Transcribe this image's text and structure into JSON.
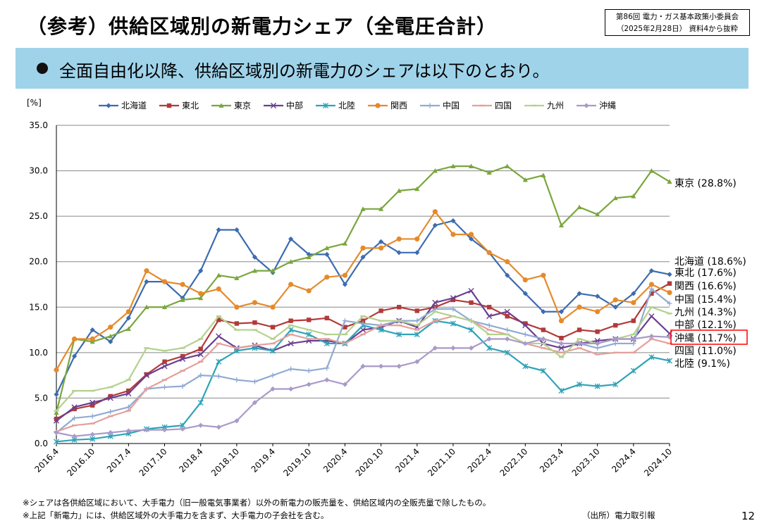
{
  "title": "（参考）供給区域別の新電力シェア（全電圧合計）",
  "source_box": {
    "line1": "第86回 電力・ガス基本政策小委員会",
    "line2": "（2025年2月28日） 資料4から抜粋"
  },
  "banner": "全面自由化以降、供給区域別の新電力のシェアは以下のとおり。",
  "footnotes": [
    "※シェアは各供給区域において、大手電力（旧一般電気事業者）以外の新電力の販売量を、供給区域内の全販売量で除したもの。",
    "※上記「新電力」には、供給区域外の大手電力を含まず、大手電力の子会社を含む。"
  ],
  "source_note": "（出所）電力取引報",
  "page_number": "12",
  "highlight_color": "#ff0000",
  "chart_data": {
    "type": "line",
    "ylabel": "[%]",
    "ylim": [
      0,
      35
    ],
    "yticks": [
      "0.0",
      "5.0",
      "10.0",
      "15.0",
      "20.0",
      "25.0",
      "30.0",
      "35.0"
    ],
    "x": [
      "2016.4",
      "2016.7",
      "2016.10",
      "2017.1",
      "2017.4",
      "2017.7",
      "2017.10",
      "2018.1",
      "2018.4",
      "2018.7",
      "2018.10",
      "2019.1",
      "2019.4",
      "2019.7",
      "2019.10",
      "2020.1",
      "2020.4",
      "2020.7",
      "2020.10",
      "2021.1",
      "2021.4",
      "2021.7",
      "2021.10",
      "2022.1",
      "2022.4",
      "2022.7",
      "2022.10",
      "2023.1",
      "2023.4",
      "2023.7",
      "2023.10",
      "2024.1",
      "2024.4",
      "2024.7",
      "2024.10"
    ],
    "xticks": [
      "2016.4",
      "2016.10",
      "2017.4",
      "2017.10",
      "2018.4",
      "2018.10",
      "2019.4",
      "2019.10",
      "2020.4",
      "2020.10",
      "2021.4",
      "2021.10",
      "2022.4",
      "2022.10",
      "2023.4",
      "2023.10",
      "2024.4",
      "2024.10"
    ],
    "grid": "horizontal",
    "legend_position": "top",
    "series": [
      {
        "name": "北海道",
        "color": "#3c6cb0",
        "marker": "diamond",
        "end_label": "北海道 (18.6%)",
        "values": [
          5.4,
          9.6,
          12.5,
          11.2,
          13.8,
          17.8,
          17.8,
          16.0,
          19.0,
          23.5,
          23.5,
          20.5,
          18.8,
          22.5,
          20.8,
          20.8,
          17.5,
          20.5,
          22.2,
          21.0,
          21.0,
          24.0,
          24.5,
          22.5,
          21.0,
          18.5,
          16.5,
          14.5,
          14.5,
          16.5,
          16.2,
          15.0,
          16.5,
          19.0,
          18.6
        ]
      },
      {
        "name": "東北",
        "color": "#b23a3a",
        "marker": "square",
        "end_label": "東北 (17.6%)",
        "values": [
          2.7,
          3.8,
          4.2,
          5.2,
          5.8,
          7.6,
          9.0,
          9.6,
          10.4,
          13.6,
          13.2,
          13.3,
          12.8,
          13.5,
          13.6,
          13.8,
          12.8,
          13.5,
          14.6,
          15.0,
          14.6,
          15.0,
          15.8,
          15.5,
          15.0,
          14.0,
          13.2,
          12.5,
          11.6,
          12.5,
          12.3,
          13.0,
          13.5,
          16.5,
          17.6
        ]
      },
      {
        "name": "東京",
        "color": "#7aa63c",
        "marker": "triangle",
        "end_label": "東京 (28.8%)",
        "values": [
          3.4,
          11.5,
          11.2,
          11.8,
          12.6,
          15.0,
          15.0,
          15.8,
          16.0,
          18.5,
          18.2,
          19.0,
          19.0,
          20.0,
          20.5,
          21.5,
          22.0,
          25.8,
          25.8,
          27.8,
          28.0,
          30.0,
          30.5,
          30.5,
          29.8,
          30.5,
          29.0,
          29.5,
          24.0,
          26.0,
          25.2,
          27.0,
          27.2,
          30.0,
          28.8
        ]
      },
      {
        "name": "中部",
        "color": "#6a3e90",
        "marker": "x",
        "end_label": "中部 (12.1%)",
        "values": [
          2.5,
          4.0,
          4.5,
          5.0,
          5.5,
          7.5,
          8.5,
          9.3,
          9.8,
          11.8,
          10.5,
          10.8,
          10.2,
          11.0,
          11.3,
          11.3,
          11.0,
          12.5,
          12.8,
          13.5,
          12.8,
          15.5,
          16.0,
          16.8,
          14.0,
          14.5,
          13.0,
          11.0,
          10.5,
          11.0,
          11.3,
          11.5,
          11.5,
          14.0,
          12.1
        ]
      },
      {
        "name": "北陸",
        "color": "#2fa3b8",
        "marker": "asterisk",
        "end_label": "北陸 (9.1%)",
        "values": [
          0.2,
          0.4,
          0.5,
          0.8,
          1.1,
          1.6,
          1.8,
          2.0,
          4.5,
          9.0,
          10.2,
          10.5,
          10.2,
          12.5,
          12.0,
          11.0,
          11.0,
          13.0,
          12.5,
          12.0,
          12.0,
          13.5,
          13.2,
          12.5,
          10.5,
          10.0,
          8.5,
          8.0,
          5.8,
          6.5,
          6.3,
          6.5,
          8.0,
          9.5,
          9.1
        ]
      },
      {
        "name": "関西",
        "color": "#e58a2b",
        "marker": "circle",
        "end_label": "関西 (16.6%)",
        "values": [
          8.1,
          11.5,
          11.5,
          12.8,
          14.5,
          19.0,
          17.8,
          17.5,
          16.5,
          17.0,
          15.0,
          15.5,
          15.0,
          17.5,
          16.8,
          18.3,
          18.5,
          21.5,
          21.5,
          22.5,
          22.5,
          25.5,
          23.0,
          23.0,
          21.0,
          20.0,
          18.0,
          18.5,
          13.5,
          15.0,
          14.5,
          15.8,
          15.5,
          17.5,
          16.6
        ]
      },
      {
        "name": "中国",
        "color": "#8fabd3",
        "marker": "plus",
        "end_label": "中国 (15.4%)",
        "values": [
          1.2,
          2.8,
          3.0,
          3.5,
          4.0,
          6.0,
          6.2,
          6.3,
          7.5,
          7.4,
          7.0,
          6.8,
          7.5,
          8.2,
          8.0,
          8.3,
          13.5,
          13.2,
          13.0,
          13.5,
          13.5,
          14.8,
          14.8,
          13.5,
          13.0,
          12.5,
          12.0,
          11.5,
          11.0,
          11.0,
          10.5,
          11.0,
          11.0,
          17.0,
          15.4
        ]
      },
      {
        "name": "四国",
        "color": "#e3a09b",
        "marker": "dash",
        "end_label": "四国 (11.0%)",
        "values": [
          1.3,
          2.0,
          2.2,
          3.0,
          3.6,
          6.0,
          7.0,
          8.0,
          9.0,
          11.0,
          10.5,
          10.8,
          11.0,
          12.0,
          11.5,
          11.5,
          11.0,
          12.0,
          13.0,
          13.0,
          12.5,
          13.5,
          14.0,
          13.5,
          12.5,
          12.0,
          11.0,
          10.5,
          10.0,
          10.5,
          9.8,
          10.0,
          10.0,
          11.5,
          11.0
        ]
      },
      {
        "name": "九州",
        "color": "#b5d18e",
        "marker": "dash",
        "end_label": "九州 (14.3%)",
        "values": [
          3.6,
          5.8,
          5.8,
          6.2,
          7.0,
          10.5,
          10.2,
          10.5,
          11.5,
          14.0,
          12.5,
          12.5,
          11.5,
          13.0,
          12.5,
          12.0,
          12.0,
          14.0,
          13.5,
          13.5,
          13.0,
          14.5,
          14.0,
          13.5,
          12.0,
          12.0,
          11.0,
          11.0,
          9.5,
          11.5,
          11.0,
          11.5,
          12.0,
          15.0,
          14.3
        ]
      },
      {
        "name": "沖縄",
        "color": "#a99ac8",
        "marker": "diamond",
        "end_label": "沖縄 (11.7%)",
        "highlight": true,
        "values": [
          1.2,
          0.8,
          1.0,
          1.2,
          1.4,
          1.5,
          1.5,
          1.6,
          2.0,
          1.8,
          2.5,
          4.5,
          6.0,
          6.0,
          6.5,
          7.0,
          6.5,
          8.5,
          8.5,
          8.5,
          9.0,
          10.5,
          10.5,
          10.5,
          11.5,
          11.5,
          11.0,
          11.5,
          11.0,
          11.0,
          11.0,
          11.5,
          11.5,
          11.8,
          11.7
        ]
      }
    ]
  }
}
